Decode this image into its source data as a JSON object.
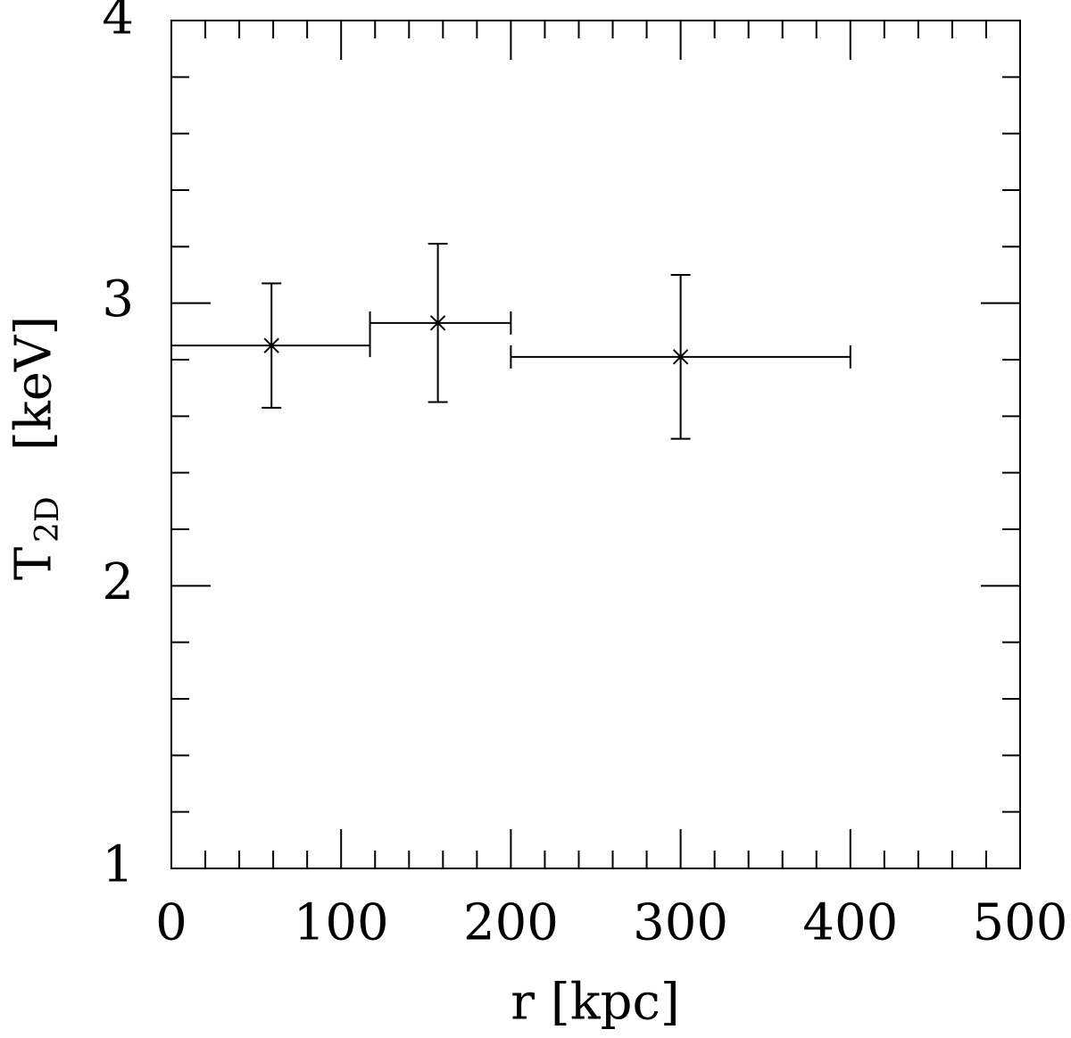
{
  "chart_data": {
    "type": "errorbar",
    "x_label": "r [kpc]",
    "y_label": {
      "main": "T",
      "sub": "2D",
      "unit": "[keV]"
    },
    "xlim": [
      0,
      500
    ],
    "ylim": [
      1,
      4
    ],
    "xticks": [
      0,
      100,
      200,
      300,
      400,
      500
    ],
    "yticks": [
      1,
      2,
      3,
      4
    ],
    "xminorticks": [
      20,
      40,
      60,
      80,
      120,
      140,
      160,
      180,
      220,
      240,
      260,
      280,
      320,
      340,
      360,
      380,
      420,
      440,
      460,
      480
    ],
    "yminorticks": [
      1.2,
      1.4,
      1.6,
      1.8,
      2.2,
      2.4,
      2.6,
      2.8,
      3.2,
      3.4,
      3.6,
      3.8
    ],
    "series": [
      {
        "color": "#000000",
        "x": [
          59,
          157,
          300
        ],
        "x_low": [
          0,
          117,
          200
        ],
        "x_high": [
          117,
          200,
          400
        ],
        "y": [
          2.85,
          2.93,
          2.81
        ],
        "y_err": [
          0.22,
          0.28,
          0.29
        ]
      }
    ]
  }
}
